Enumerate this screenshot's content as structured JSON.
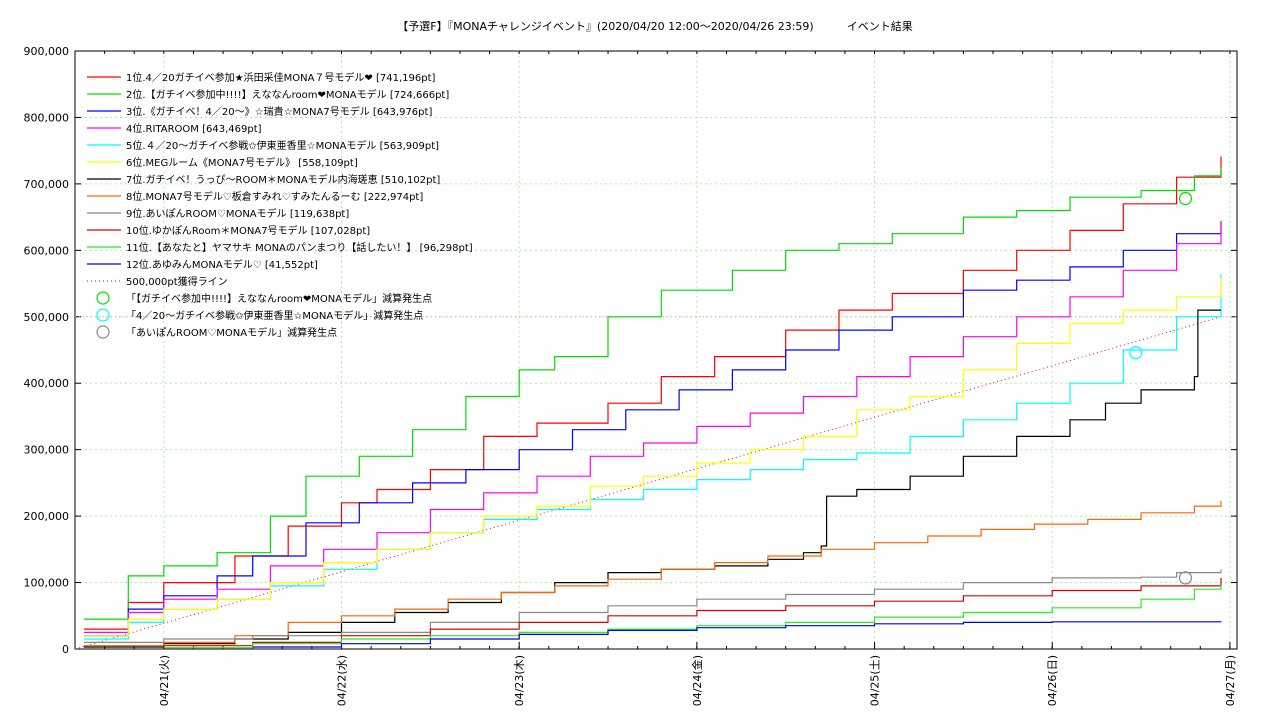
{
  "chart_data": {
    "type": "line",
    "title": "【予選F】『MONAチャレンジイベント』(2020/04/20 12:00〜2020/04/26 23:59)　　　イベント結果",
    "xlabel": "",
    "ylabel": "",
    "x_start": "04/20 12:00",
    "x_end": "04/27 01:00",
    "xlim_days": [
      0,
      6.54
    ],
    "ylim": [
      0,
      900000
    ],
    "y_ticks": [
      0,
      100000,
      200000,
      300000,
      400000,
      500000,
      600000,
      700000,
      800000,
      900000
    ],
    "y_tick_labels": [
      "0",
      "100,000",
      "200,000",
      "300,000",
      "400,000",
      "500,000",
      "600,000",
      "700,000",
      "800,000",
      "900,000"
    ],
    "x_ticks": [
      0.5,
      1.5,
      2.5,
      3.5,
      4.5,
      5.5,
      6.5
    ],
    "x_tick_labels": [
      "04/21(火)",
      "04/22(水)",
      "04/23(木)",
      "04/24(金)",
      "04/25(土)",
      "04/26(日)",
      "04/27(月)"
    ],
    "grid": true,
    "legend_position": "top-left",
    "series": [
      {
        "name": "1位.4／20ガチイベ参加★浜田采佳MONA７号モデル❤ [741,196pt]",
        "color": "#ff0000",
        "points": [
          [
            0.05,
            30000
          ],
          [
            0.3,
            70000
          ],
          [
            0.5,
            100000
          ],
          [
            0.9,
            140000
          ],
          [
            1.2,
            185000
          ],
          [
            1.5,
            220000
          ],
          [
            1.7,
            240000
          ],
          [
            2.0,
            270000
          ],
          [
            2.3,
            320000
          ],
          [
            2.6,
            340000
          ],
          [
            3.0,
            370000
          ],
          [
            3.3,
            410000
          ],
          [
            3.6,
            440000
          ],
          [
            4.0,
            480000
          ],
          [
            4.3,
            510000
          ],
          [
            4.6,
            535000
          ],
          [
            5.0,
            570000
          ],
          [
            5.3,
            600000
          ],
          [
            5.6,
            630000
          ],
          [
            5.9,
            670000
          ],
          [
            6.2,
            710000
          ],
          [
            6.45,
            741196
          ]
        ]
      },
      {
        "name": "2位.【ガチイベ参加中!!!!】えななんroom❤MONAモデル [724,666pt]",
        "color": "#00dd00",
        "points": [
          [
            0.05,
            45000
          ],
          [
            0.3,
            110000
          ],
          [
            0.5,
            125000
          ],
          [
            0.8,
            145000
          ],
          [
            1.1,
            200000
          ],
          [
            1.3,
            260000
          ],
          [
            1.6,
            290000
          ],
          [
            1.9,
            330000
          ],
          [
            2.2,
            380000
          ],
          [
            2.5,
            420000
          ],
          [
            2.7,
            440000
          ],
          [
            3.0,
            500000
          ],
          [
            3.3,
            540000
          ],
          [
            3.7,
            570000
          ],
          [
            4.0,
            600000
          ],
          [
            4.3,
            610000
          ],
          [
            4.6,
            625000
          ],
          [
            5.0,
            650000
          ],
          [
            5.3,
            660000
          ],
          [
            5.6,
            680000
          ],
          [
            6.0,
            690000
          ],
          [
            6.3,
            712000
          ],
          [
            6.45,
            724666
          ]
        ]
      },
      {
        "name": "3位.《ガチイベ！4／20〜》☆瑞貴☆MONA7号モデル [643,976pt]",
        "color": "#0000ff",
        "points": [
          [
            0.05,
            20000
          ],
          [
            0.3,
            60000
          ],
          [
            0.5,
            80000
          ],
          [
            0.8,
            110000
          ],
          [
            1.0,
            140000
          ],
          [
            1.3,
            190000
          ],
          [
            1.6,
            220000
          ],
          [
            1.9,
            250000
          ],
          [
            2.2,
            270000
          ],
          [
            2.5,
            300000
          ],
          [
            2.8,
            330000
          ],
          [
            3.1,
            360000
          ],
          [
            3.4,
            390000
          ],
          [
            3.7,
            420000
          ],
          [
            4.0,
            450000
          ],
          [
            4.3,
            480000
          ],
          [
            4.6,
            500000
          ],
          [
            5.0,
            540000
          ],
          [
            5.3,
            555000
          ],
          [
            5.6,
            575000
          ],
          [
            5.9,
            600000
          ],
          [
            6.2,
            625000
          ],
          [
            6.45,
            643976
          ]
        ]
      },
      {
        "name": "4位.RITAROOM [643,469pt]",
        "color": "#ff00ff",
        "points": [
          [
            0.05,
            25000
          ],
          [
            0.3,
            55000
          ],
          [
            0.5,
            75000
          ],
          [
            0.8,
            90000
          ],
          [
            1.1,
            125000
          ],
          [
            1.4,
            150000
          ],
          [
            1.7,
            175000
          ],
          [
            2.0,
            210000
          ],
          [
            2.3,
            235000
          ],
          [
            2.6,
            260000
          ],
          [
            2.9,
            290000
          ],
          [
            3.2,
            310000
          ],
          [
            3.5,
            335000
          ],
          [
            3.8,
            355000
          ],
          [
            4.1,
            380000
          ],
          [
            4.4,
            410000
          ],
          [
            4.7,
            440000
          ],
          [
            5.0,
            470000
          ],
          [
            5.3,
            500000
          ],
          [
            5.6,
            530000
          ],
          [
            5.9,
            570000
          ],
          [
            6.2,
            610000
          ],
          [
            6.45,
            643469
          ]
        ]
      },
      {
        "name": "5位.４／20〜ガチイベ参戦✩伊東亜香里☆MONAモデル [563,909pt]",
        "color": "#00ffff",
        "points": [
          [
            0.05,
            15000
          ],
          [
            0.3,
            40000
          ],
          [
            0.5,
            60000
          ],
          [
            0.8,
            75000
          ],
          [
            1.1,
            95000
          ],
          [
            1.4,
            120000
          ],
          [
            1.7,
            150000
          ],
          [
            2.0,
            175000
          ],
          [
            2.3,
            195000
          ],
          [
            2.6,
            210000
          ],
          [
            2.9,
            225000
          ],
          [
            3.2,
            240000
          ],
          [
            3.5,
            255000
          ],
          [
            3.8,
            270000
          ],
          [
            4.1,
            285000
          ],
          [
            4.4,
            295000
          ],
          [
            4.7,
            320000
          ],
          [
            5.0,
            345000
          ],
          [
            5.3,
            370000
          ],
          [
            5.6,
            400000
          ],
          [
            5.9,
            450000
          ],
          [
            6.2,
            500000
          ],
          [
            6.45,
            563909
          ]
        ]
      },
      {
        "name": "6位.MEGルーム《MONA7号モデル》 [558,109pt]",
        "color": "#ffff00",
        "points": [
          [
            0.05,
            20000
          ],
          [
            0.3,
            45000
          ],
          [
            0.5,
            60000
          ],
          [
            0.8,
            75000
          ],
          [
            1.1,
            100000
          ],
          [
            1.4,
            130000
          ],
          [
            1.7,
            150000
          ],
          [
            2.0,
            175000
          ],
          [
            2.3,
            200000
          ],
          [
            2.6,
            215000
          ],
          [
            2.9,
            245000
          ],
          [
            3.2,
            260000
          ],
          [
            3.5,
            280000
          ],
          [
            3.8,
            300000
          ],
          [
            4.1,
            320000
          ],
          [
            4.4,
            360000
          ],
          [
            4.7,
            380000
          ],
          [
            5.0,
            420000
          ],
          [
            5.3,
            460000
          ],
          [
            5.6,
            490000
          ],
          [
            5.9,
            510000
          ],
          [
            6.2,
            530000
          ],
          [
            6.45,
            558109
          ]
        ]
      },
      {
        "name": "7位.ガチイベ！うっぴ〜ROOM＊MONAモデル内海瑳恵 [510,102pt]",
        "color": "#000000",
        "points": [
          [
            0.05,
            3000
          ],
          [
            0.5,
            8000
          ],
          [
            0.9,
            15000
          ],
          [
            1.2,
            25000
          ],
          [
            1.5,
            40000
          ],
          [
            1.8,
            55000
          ],
          [
            2.1,
            70000
          ],
          [
            2.4,
            85000
          ],
          [
            2.7,
            100000
          ],
          [
            3.0,
            115000
          ],
          [
            3.3,
            120000
          ],
          [
            3.6,
            125000
          ],
          [
            3.9,
            135000
          ],
          [
            4.1,
            145000
          ],
          [
            4.2,
            155000
          ],
          [
            4.23,
            230000
          ],
          [
            4.4,
            240000
          ],
          [
            4.7,
            260000
          ],
          [
            5.0,
            290000
          ],
          [
            5.3,
            320000
          ],
          [
            5.6,
            345000
          ],
          [
            5.8,
            370000
          ],
          [
            6.0,
            390000
          ],
          [
            6.3,
            410000
          ],
          [
            6.32,
            510102
          ],
          [
            6.45,
            510102
          ]
        ]
      },
      {
        "name": "8位.MONA7号モデル♡板倉すみれ♡すみたんるーむ [222,974pt]",
        "color": "#ff6600",
        "points": [
          [
            0.05,
            5000
          ],
          [
            0.5,
            10000
          ],
          [
            0.9,
            20000
          ],
          [
            1.2,
            40000
          ],
          [
            1.5,
            50000
          ],
          [
            1.8,
            60000
          ],
          [
            2.1,
            75000
          ],
          [
            2.4,
            85000
          ],
          [
            2.7,
            95000
          ],
          [
            3.0,
            105000
          ],
          [
            3.3,
            120000
          ],
          [
            3.6,
            130000
          ],
          [
            3.9,
            140000
          ],
          [
            4.2,
            150000
          ],
          [
            4.5,
            160000
          ],
          [
            4.8,
            170000
          ],
          [
            5.1,
            180000
          ],
          [
            5.4,
            188000
          ],
          [
            5.7,
            195000
          ],
          [
            6.0,
            205000
          ],
          [
            6.3,
            215000
          ],
          [
            6.45,
            222974
          ]
        ]
      },
      {
        "name": "9位.あいぽんROOM♡MONAモデル [119,638pt]",
        "color": "#888888",
        "points": [
          [
            0.05,
            10000
          ],
          [
            0.5,
            15000
          ],
          [
            1.0,
            20000
          ],
          [
            1.5,
            25000
          ],
          [
            2.0,
            40000
          ],
          [
            2.5,
            55000
          ],
          [
            3.0,
            65000
          ],
          [
            3.5,
            75000
          ],
          [
            4.0,
            82000
          ],
          [
            4.5,
            90000
          ],
          [
            5.0,
            100000
          ],
          [
            5.5,
            107000
          ],
          [
            6.0,
            108000
          ],
          [
            6.2,
            115000
          ],
          [
            6.45,
            119638
          ]
        ]
      },
      {
        "name": "10位.ゆかぽんRoom＊MONA7号モデル [107,028pt]",
        "color": "#dd0000",
        "points": [
          [
            0.5,
            5000
          ],
          [
            1.0,
            10000
          ],
          [
            1.5,
            20000
          ],
          [
            2.0,
            30000
          ],
          [
            2.5,
            40000
          ],
          [
            3.0,
            50000
          ],
          [
            3.5,
            58000
          ],
          [
            4.0,
            65000
          ],
          [
            4.5,
            72000
          ],
          [
            5.0,
            80000
          ],
          [
            5.5,
            88000
          ],
          [
            6.0,
            95000
          ],
          [
            6.45,
            107028
          ]
        ]
      },
      {
        "name": "11位.【あなたと】ヤマサキ MONAのパンまつり【話したい！】 [96,298pt]",
        "color": "#22ee22",
        "points": [
          [
            0.5,
            2000
          ],
          [
            1.0,
            8000
          ],
          [
            1.5,
            15000
          ],
          [
            2.0,
            20000
          ],
          [
            2.5,
            25000
          ],
          [
            3.0,
            30000
          ],
          [
            3.5,
            35000
          ],
          [
            4.0,
            40000
          ],
          [
            4.5,
            48000
          ],
          [
            5.0,
            55000
          ],
          [
            5.5,
            62000
          ],
          [
            6.0,
            75000
          ],
          [
            6.3,
            90000
          ],
          [
            6.45,
            96298
          ]
        ]
      },
      {
        "name": "12位.あゆみんMONAモデル♡ [41,552pt]",
        "color": "#0000dd",
        "points": [
          [
            1.0,
            3000
          ],
          [
            1.5,
            8000
          ],
          [
            2.0,
            15000
          ],
          [
            2.5,
            22000
          ],
          [
            3.0,
            28000
          ],
          [
            3.5,
            32000
          ],
          [
            4.0,
            35000
          ],
          [
            4.5,
            38000
          ],
          [
            5.0,
            40000
          ],
          [
            5.5,
            41000
          ],
          [
            6.45,
            41552
          ]
        ]
      }
    ],
    "reference_line": {
      "name": "500,000pt獲得ライン",
      "color": "#ff0000",
      "from": [
        0,
        0
      ],
      "to": [
        6.45,
        500000
      ]
    },
    "markers": [
      {
        "name": "「【ガチイベ参加中!!!!】えななんroom❤MONAモデル」減算発生点",
        "color": "#00dd00",
        "x": 6.25,
        "y": 678000
      },
      {
        "name": "「4／20〜ガチイベ参戦✩伊東亜香里☆MONAモデル」減算発生点",
        "color": "#00ffff",
        "x": 5.97,
        "y": 446000
      },
      {
        "name": "「あいぽんROOM♡MONAモデル」減算発生点",
        "color": "#888888",
        "x": 6.25,
        "y": 107000
      }
    ]
  }
}
